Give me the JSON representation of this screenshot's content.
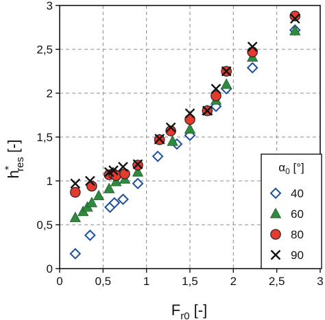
{
  "chart_data": {
    "type": "scatter",
    "xlabel": {
      "main": "F",
      "sub": "r0",
      "suffix": " [-]"
    },
    "ylabel": {
      "main": "h",
      "sup": "*",
      "sub": "res",
      "suffix": " [-]"
    },
    "xlim": [
      0,
      3
    ],
    "ylim": [
      0,
      3
    ],
    "x_ticks": [
      0,
      0.5,
      1,
      1.5,
      2,
      2.5,
      3
    ],
    "y_ticks": [
      0,
      0.5,
      1,
      1.5,
      2,
      2.5,
      3
    ],
    "x_tick_labels": [
      "0",
      "0,5",
      "1",
      "1,5",
      "2",
      "2,5",
      "3"
    ],
    "y_tick_labels": [
      "0",
      "0,5",
      "1",
      "1,5",
      "2",
      "2,5",
      "3"
    ],
    "grid": true,
    "legend": {
      "title_symbol": "α",
      "title_sub": "0",
      "title_unit": " [°]",
      "placement": "bottom-right"
    },
    "series": [
      {
        "name": "40",
        "marker": "diamond",
        "color": "#ffffff",
        "edge": "#1f4f9c",
        "points": [
          [
            0.18,
            0.17
          ],
          [
            0.35,
            0.38
          ],
          [
            0.58,
            0.7
          ],
          [
            0.63,
            0.75
          ],
          [
            0.73,
            0.79
          ],
          [
            0.9,
            0.97
          ],
          [
            1.13,
            1.28
          ],
          [
            1.35,
            1.42
          ],
          [
            1.5,
            1.52
          ],
          [
            1.8,
            1.85
          ],
          [
            1.92,
            2.05
          ],
          [
            2.22,
            2.29
          ],
          [
            2.71,
            2.72
          ]
        ]
      },
      {
        "name": "60",
        "marker": "triangle",
        "color": "#2e8a3e",
        "edge": "#1e5e28",
        "points": [
          [
            0.18,
            0.58
          ],
          [
            0.27,
            0.65
          ],
          [
            0.32,
            0.7
          ],
          [
            0.37,
            0.75
          ],
          [
            0.45,
            0.83
          ],
          [
            0.57,
            0.91
          ],
          [
            0.65,
            0.99
          ],
          [
            0.75,
            1.02
          ],
          [
            0.9,
            1.1
          ],
          [
            1.15,
            1.47
          ],
          [
            1.3,
            1.45
          ],
          [
            1.5,
            1.59
          ],
          [
            1.7,
            1.8
          ],
          [
            1.8,
            1.92
          ],
          [
            1.92,
            2.1
          ],
          [
            2.22,
            2.41
          ],
          [
            2.71,
            2.71
          ]
        ]
      },
      {
        "name": "80",
        "marker": "circle",
        "color": "#e53b2f",
        "edge": "#222222",
        "points": [
          [
            0.18,
            0.87
          ],
          [
            0.37,
            0.94
          ],
          [
            0.57,
            1.07
          ],
          [
            0.62,
            1.08
          ],
          [
            0.65,
            1.06
          ],
          [
            0.75,
            1.08
          ],
          [
            0.9,
            1.18
          ],
          [
            1.15,
            1.47
          ],
          [
            1.28,
            1.57
          ],
          [
            1.5,
            1.7
          ],
          [
            1.7,
            1.8
          ],
          [
            1.8,
            1.97
          ],
          [
            1.92,
            2.25
          ],
          [
            2.22,
            2.47
          ],
          [
            2.71,
            2.88
          ]
        ]
      },
      {
        "name": "90",
        "marker": "x",
        "color": "#111111",
        "edge": "#111111",
        "points": [
          [
            0.18,
            0.97
          ],
          [
            0.35,
            1.0
          ],
          [
            0.57,
            1.1
          ],
          [
            0.62,
            1.12
          ],
          [
            0.73,
            1.16
          ],
          [
            0.9,
            1.19
          ],
          [
            1.15,
            1.48
          ],
          [
            1.28,
            1.61
          ],
          [
            1.5,
            1.77
          ],
          [
            1.7,
            1.8
          ],
          [
            1.8,
            2.05
          ],
          [
            1.92,
            2.25
          ],
          [
            2.22,
            2.53
          ],
          [
            2.71,
            2.85
          ]
        ]
      }
    ]
  }
}
